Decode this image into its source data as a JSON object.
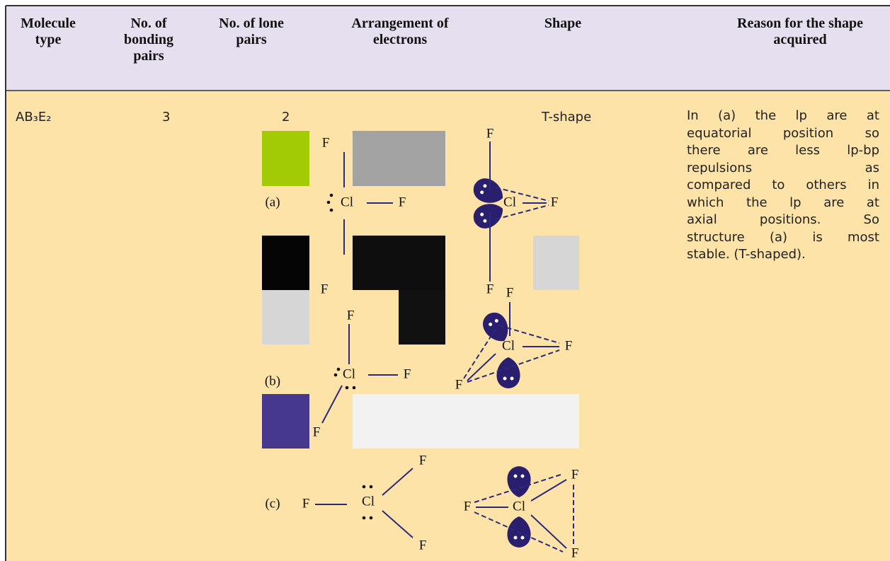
{
  "table": {
    "header": [
      "Molecule type",
      "No. of bonding pairs",
      "No. of lone pairs",
      "Arrangement of electrons",
      "Shape",
      "Reason for the shape acquired"
    ],
    "row": {
      "molecule_type": "AB₃E₂",
      "bonding_pairs": "3",
      "lone_pairs": "2",
      "shape": "T-shape",
      "reason_lines": [
        "In (a) the lp are at",
        "equatorial position so",
        "there are less lp-bp",
        "repulsions as",
        "compared to others in",
        "which the lp are at",
        "axial positions. So",
        "structure (a) is most",
        "stable. (T-shaped)."
      ]
    },
    "structures": [
      {
        "label": "(a)",
        "lewis": [
          "F",
          "Cl",
          "F",
          "F"
        ],
        "shape": [
          "F",
          "Cl",
          "F",
          "F"
        ]
      },
      {
        "label": "(b)",
        "lewis": [
          "F",
          "Cl",
          "F",
          "F"
        ],
        "shape": [
          "F",
          "Cl",
          "F",
          "F"
        ]
      },
      {
        "label": "(c)",
        "lewis": [
          "F",
          "Cl",
          "F",
          "F"
        ],
        "shape": [
          "F",
          "Cl",
          "F",
          "F"
        ]
      }
    ]
  }
}
